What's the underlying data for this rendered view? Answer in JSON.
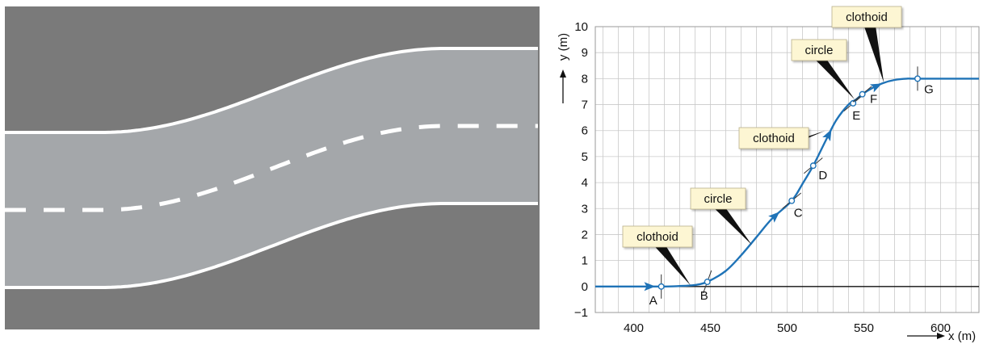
{
  "road_illustration": {
    "colors": {
      "ground": "#7a7a7a",
      "road": "#a4a7aa",
      "edge_line": "#ffffff",
      "center_line": "#ffffff"
    }
  },
  "chart_data": {
    "type": "line",
    "title": "",
    "xlabel": "x (m)",
    "ylabel": "y (m)",
    "xlim": [
      375,
      625
    ],
    "ylim": [
      -1,
      10
    ],
    "xticks": [
      400,
      450,
      500,
      550,
      600
    ],
    "yticks": [
      -1,
      0,
      1,
      2,
      3,
      4,
      5,
      6,
      7,
      8,
      9,
      10
    ],
    "grid": true,
    "colors": {
      "curve": "#1f73b7",
      "axis": "#111111",
      "grid": "#c9c9c9",
      "callout_fill": "#fdf6d3",
      "callout_pointer": "#111111"
    },
    "series": [
      {
        "x": [
          375,
          418,
          430,
          440,
          448,
          460,
          470,
          480,
          490,
          503,
          510,
          517,
          525,
          532,
          540,
          545,
          549,
          555,
          562,
          570,
          578,
          585,
          625
        ],
        "y": [
          0,
          0,
          0.02,
          0.06,
          0.18,
          0.6,
          1.2,
          1.9,
          2.6,
          3.3,
          3.95,
          4.65,
          5.6,
          6.4,
          7.0,
          7.2,
          7.4,
          7.62,
          7.82,
          7.95,
          8.0,
          8.0,
          8.0
        ]
      }
    ],
    "points": [
      {
        "label": "A",
        "x": 418,
        "y": 0.0
      },
      {
        "label": "B",
        "x": 448,
        "y": 0.18
      },
      {
        "label": "C",
        "x": 503,
        "y": 3.3
      },
      {
        "label": "D",
        "x": 517,
        "y": 4.65
      },
      {
        "label": "E",
        "x": 543,
        "y": 7.05
      },
      {
        "label": "F",
        "x": 549,
        "y": 7.4
      },
      {
        "label": "G",
        "x": 585,
        "y": 8.0
      }
    ],
    "arrows_at_x": [
      410,
      492,
      527,
      558
    ],
    "segments": [
      {
        "label": "clothoid",
        "anchor_x": 437,
        "anchor_y": 0.05
      },
      {
        "label": "circle",
        "anchor_x": 477,
        "anchor_y": 1.6
      },
      {
        "label": "clothoid",
        "anchor_x": 525,
        "anchor_y": 6.0
      },
      {
        "label": "circle",
        "anchor_x": 544,
        "anchor_y": 7.2
      },
      {
        "label": "clothoid",
        "anchor_x": 563,
        "anchor_y": 7.85
      }
    ]
  }
}
